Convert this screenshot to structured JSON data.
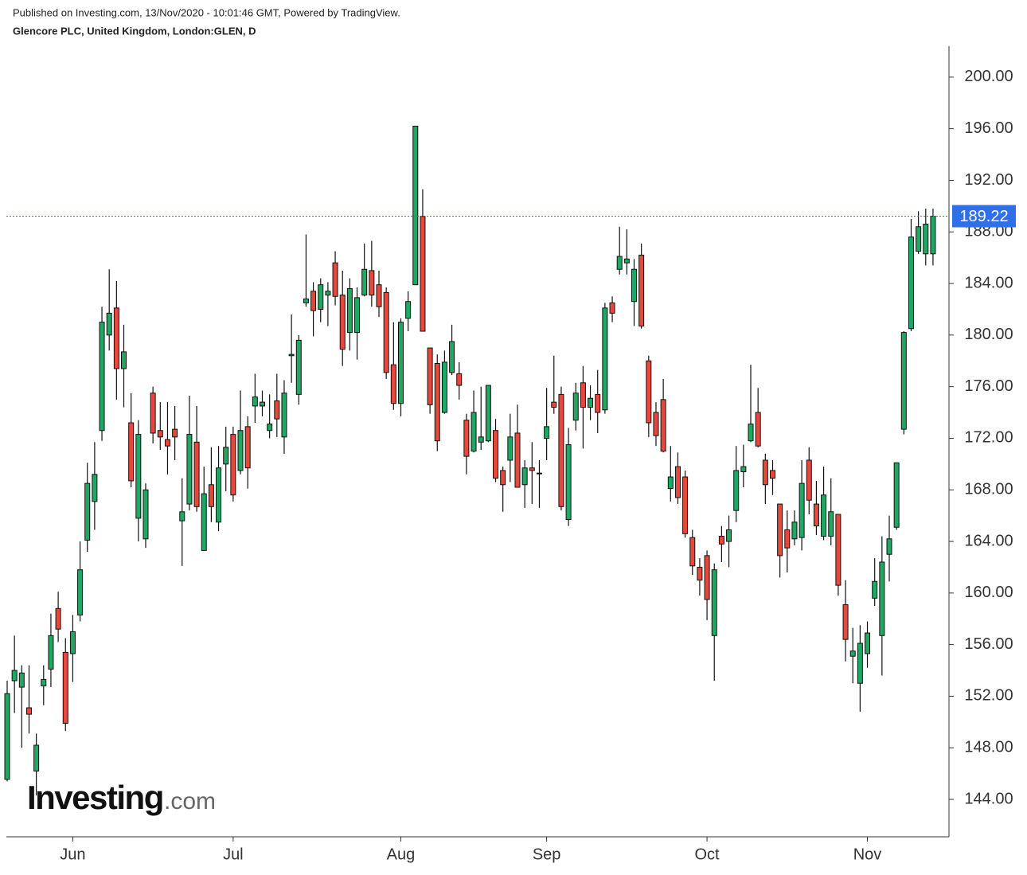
{
  "chart_data": {
    "type": "candlestick",
    "subtitle": "Published on Investing.com, 13/Nov/2020 - 10:01:46 GMT, Powered by TradingView.",
    "title": "Glencore PLC, United Kingdom, London:GLEN, D",
    "watermark": {
      "brand": "Investing",
      "suffix": ".com"
    },
    "up_color": "#1fa863",
    "down_color": "#e8483c",
    "last_color": "#2f6fe8",
    "ylim": [
      141.1,
      202.4
    ],
    "yticks": [
      {
        "value": 144,
        "label": "144.00"
      },
      {
        "value": 148,
        "label": "148.00"
      },
      {
        "value": 152,
        "label": "152.00"
      },
      {
        "value": 156,
        "label": "156.00"
      },
      {
        "value": 160,
        "label": "160.00"
      },
      {
        "value": 164,
        "label": "164.00"
      },
      {
        "value": 168,
        "label": "168.00"
      },
      {
        "value": 172,
        "label": "172.00"
      },
      {
        "value": 176,
        "label": "176.00"
      },
      {
        "value": 180,
        "label": "180.00"
      },
      {
        "value": 184,
        "label": "184.00"
      },
      {
        "value": 188,
        "label": "188.00"
      },
      {
        "value": 192,
        "label": "192.00"
      },
      {
        "value": 196,
        "label": "196.00"
      },
      {
        "value": 200,
        "label": "200.00"
      }
    ],
    "last_price": 189.22,
    "categories": [
      null,
      null,
      null,
      null,
      null,
      null,
      null,
      null,
      null,
      "Jun",
      null,
      null,
      null,
      null,
      null,
      null,
      null,
      null,
      null,
      null,
      null,
      null,
      null,
      null,
      null,
      null,
      null,
      null,
      null,
      null,
      null,
      "Jul",
      null,
      null,
      null,
      null,
      null,
      null,
      null,
      null,
      null,
      null,
      null,
      null,
      null,
      null,
      null,
      null,
      null,
      null,
      null,
      null,
      null,
      null,
      "Aug",
      null,
      null,
      null,
      null,
      null,
      null,
      null,
      null,
      null,
      null,
      null,
      null,
      null,
      null,
      null,
      null,
      null,
      null,
      null,
      "Sep",
      null,
      null,
      null,
      null,
      null,
      null,
      null,
      null,
      null,
      null,
      null,
      null,
      null,
      null,
      null,
      null,
      null,
      null,
      null,
      null,
      null,
      "Oct",
      null,
      null,
      null,
      null,
      null,
      null,
      null,
      null,
      null,
      null,
      null,
      null,
      null,
      null,
      null,
      null,
      null,
      null,
      null,
      null,
      null,
      "Nov",
      null,
      null,
      null,
      null,
      null,
      null,
      null,
      null,
      null
    ],
    "open": [
      145.55,
      153.2,
      152.7,
      151.1,
      146.2,
      152.8,
      154.1,
      158.8,
      155.4,
      155.3,
      158.3,
      164.1,
      167.1,
      172.6,
      180.0,
      182.1,
      177.4,
      173.2,
      165.8,
      164.2,
      175.5,
      172.6,
      171.9,
      172.7,
      165.6,
      166.9,
      171.7,
      163.3,
      168.4,
      165.5,
      170.0,
      172.3,
      169.5,
      172.9,
      174.5,
      174.5,
      172.6,
      174.9,
      172.1,
      178.4,
      175.4,
      182.5,
      183.4,
      182.0,
      183.1,
      185.6,
      183.1,
      180.2,
      180.2,
      183.1,
      185.0,
      183.9,
      183.3,
      177.7,
      174.7,
      181.3,
      183.9,
      189.2,
      179.0,
      177.8,
      174.0,
      177.1,
      177.0,
      173.4,
      171.0,
      171.7,
      171.8,
      172.6,
      169.5,
      170.3,
      172.4,
      168.4,
      169.7,
      169.3,
      172.0,
      174.8,
      175.4,
      165.7,
      173.4,
      176.3,
      174.4,
      175.4,
      174.2,
      182.5,
      185.1,
      185.6,
      182.6,
      186.2,
      178.0,
      174.0,
      175.0,
      168.1,
      169.8,
      169.0,
      164.3,
      162.0,
      162.9,
      156.7,
      164.4,
      164.0,
      166.4,
      169.4,
      171.8,
      174.0,
      170.3,
      169.5,
      166.9,
      164.9,
      164.2,
      164.3,
      170.3,
      166.9,
      164.4,
      164.4,
      166.1,
      159.1,
      155.1,
      153.0,
      155.3,
      159.6,
      156.7,
      163.0,
      165.1,
      172.7,
      180.5,
      186.5,
      186.3,
      186.3
    ],
    "high": [
      153.2,
      156.7,
      154.4,
      154.4,
      149.1,
      154.4,
      158.4,
      160.1,
      156.5,
      158.3,
      164.0,
      170.1,
      171.7,
      182.2,
      185.1,
      184.2,
      180.8,
      175.5,
      173.4,
      168.5,
      176.0,
      174.8,
      174.8,
      174.5,
      168.9,
      175.3,
      174.5,
      169.8,
      171.3,
      171.4,
      172.9,
      172.9,
      175.7,
      173.7,
      177.0,
      175.7,
      175.4,
      177.0,
      176.5,
      181.6,
      180.0,
      187.8,
      184.1,
      184.4,
      184.1,
      186.5,
      185.0,
      184.4,
      183.7,
      187.1,
      187.3,
      185.0,
      183.7,
      181.0,
      181.3,
      183.4,
      196.2,
      191.3,
      179.0,
      178.5,
      178.8,
      180.8,
      177.9,
      173.9,
      175.7,
      176.0,
      176.1,
      173.5,
      169.8,
      173.9,
      174.6,
      170.3,
      171.7,
      170.3,
      175.9,
      178.4,
      176.0,
      172.8,
      176.3,
      177.6,
      176.1,
      177.3,
      182.5,
      183.0,
      188.4,
      188.2,
      185.9,
      187.1,
      178.4,
      174.8,
      176.6,
      171.4,
      170.9,
      169.5,
      164.9,
      162.7,
      163.3,
      162.3,
      165.2,
      166.0,
      171.4,
      171.5,
      177.7,
      175.9,
      170.8,
      170.3,
      166.9,
      166.4,
      166.4,
      170.3,
      171.3,
      168.7,
      169.8,
      168.9,
      166.1,
      161.0,
      157.3,
      157.5,
      157.8,
      162.7,
      164.4,
      166.0,
      170.1,
      180.3,
      189.0,
      189.6,
      189.8,
      189.8
    ],
    "low": [
      145.4,
      150.7,
      148.0,
      149.1,
      144.3,
      151.3,
      152.7,
      156.2,
      149.3,
      153.1,
      157.8,
      163.2,
      164.9,
      171.8,
      178.8,
      175.0,
      174.4,
      168.2,
      164.0,
      163.5,
      171.6,
      171.1,
      169.2,
      170.3,
      162.1,
      166.4,
      166.3,
      163.3,
      165.5,
      164.8,
      167.9,
      167.1,
      169.2,
      168.1,
      173.2,
      173.7,
      172.0,
      172.1,
      170.8,
      176.3,
      174.6,
      182.2,
      179.9,
      181.0,
      180.7,
      182.3,
      177.6,
      178.8,
      178.1,
      183.0,
      182.2,
      181.4,
      176.6,
      174.2,
      173.7,
      180.3,
      183.9,
      180.3,
      173.9,
      171.0,
      173.9,
      176.9,
      175.0,
      169.2,
      170.9,
      171.1,
      171.7,
      168.6,
      166.3,
      168.6,
      168.2,
      166.6,
      166.9,
      166.6,
      170.3,
      173.9,
      166.4,
      165.2,
      172.6,
      171.2,
      173.4,
      172.4,
      173.9,
      181.0,
      184.7,
      184.7,
      180.7,
      180.5,
      172.1,
      171.4,
      170.9,
      167.1,
      166.9,
      164.3,
      161.4,
      159.8,
      157.9,
      153.2,
      162.4,
      162.0,
      165.5,
      168.2,
      171.7,
      171.3,
      166.9,
      167.6,
      161.2,
      161.6,
      163.7,
      163.3,
      166.1,
      164.5,
      164.1,
      163.7,
      159.8,
      154.7,
      153.0,
      150.8,
      154.2,
      159.0,
      153.6,
      160.9,
      164.9,
      172.3,
      180.3,
      186.3,
      185.4,
      185.4
    ],
    "close": [
      152.2,
      154.0,
      153.8,
      150.6,
      148.2,
      153.3,
      156.7,
      157.2,
      149.9,
      157.0,
      161.8,
      168.5,
      169.2,
      181.0,
      181.7,
      177.4,
      178.7,
      168.7,
      172.3,
      168.0,
      172.4,
      172.1,
      171.4,
      172.1,
      166.3,
      172.3,
      166.7,
      167.7,
      166.7,
      169.7,
      171.3,
      167.6,
      172.6,
      169.7,
      175.2,
      174.8,
      173.1,
      173.5,
      175.5,
      178.5,
      179.6,
      182.8,
      181.9,
      183.9,
      183.4,
      183.0,
      178.9,
      183.6,
      182.9,
      185.1,
      183.1,
      182.2,
      177.1,
      174.7,
      181.0,
      182.6,
      196.2,
      180.3,
      174.6,
      171.8,
      177.9,
      179.5,
      176.1,
      170.6,
      174.0,
      172.1,
      176.1,
      168.9,
      168.4,
      172.1,
      168.2,
      169.7,
      169.5,
      169.3,
      172.9,
      174.4,
      166.7,
      171.5,
      175.5,
      174.4,
      175.1,
      174.0,
      182.1,
      181.7,
      186.1,
      185.9,
      185.1,
      180.7,
      173.2,
      172.2,
      171.0,
      169.0,
      167.4,
      164.6,
      162.1,
      161.0,
      159.5,
      161.8,
      163.8,
      164.9,
      169.5,
      169.8,
      173.1,
      171.4,
      168.4,
      168.9,
      162.9,
      163.5,
      165.5,
      168.5,
      167.2,
      165.2,
      167.6,
      166.3,
      160.6,
      156.4,
      155.5,
      156.1,
      156.9,
      160.9,
      162.4,
      164.2,
      170.1,
      180.2,
      187.6,
      188.4,
      188.6,
      189.22
    ]
  }
}
